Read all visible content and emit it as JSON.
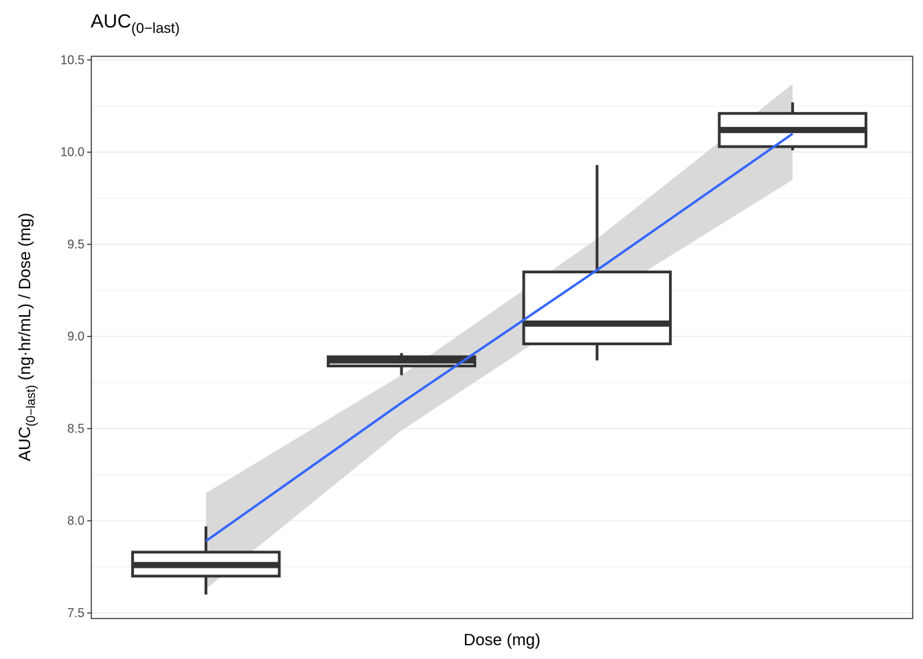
{
  "chart_data": {
    "type": "boxplot",
    "title": "AUC",
    "title_subscript": "(0−last)",
    "xlabel": "Dose (mg)",
    "ylabel": {
      "main": "AUC",
      "subscript": "(0−last)",
      "suffix": " (ng·hr/mL) / Dose (mg)"
    },
    "ylim": [
      7.47,
      10.52
    ],
    "yticks": [
      {
        "value": 7.5,
        "label": "7.5"
      },
      {
        "value": 8.0,
        "label": "8.0"
      },
      {
        "value": 8.5,
        "label": "8.5"
      },
      {
        "value": 9.0,
        "label": "9.0"
      },
      {
        "value": 9.5,
        "label": "9.5"
      },
      {
        "value": 10.0,
        "label": "10.0"
      },
      {
        "value": 10.5,
        "label": "10.5"
      }
    ],
    "grid": true,
    "legend": "none",
    "boxes": [
      {
        "min": 7.6,
        "q1": 7.7,
        "median": 7.76,
        "q3": 7.83,
        "max": 7.97
      },
      {
        "min": 8.79,
        "q1": 8.84,
        "median": 8.87,
        "q3": 8.89,
        "max": 8.91
      },
      {
        "min": 8.87,
        "q1": 8.96,
        "median": 9.07,
        "q3": 9.35,
        "max": 9.93
      },
      {
        "min": 10.01,
        "q1": 10.03,
        "median": 10.12,
        "q3": 10.21,
        "max": 10.27
      }
    ],
    "trend": {
      "method": "lm",
      "fit": [
        7.89,
        8.64,
        9.36,
        10.1
      ],
      "ci_upper": [
        8.15,
        8.79,
        9.53,
        10.37
      ],
      "ci_lower": [
        7.63,
        8.49,
        9.19,
        9.85
      ]
    },
    "colors": {
      "box": "#333333",
      "trend_line": "#3366ff",
      "ci_band": "#d9d9d9",
      "grid": "#ebebeb",
      "panel_border": "#333333"
    }
  }
}
